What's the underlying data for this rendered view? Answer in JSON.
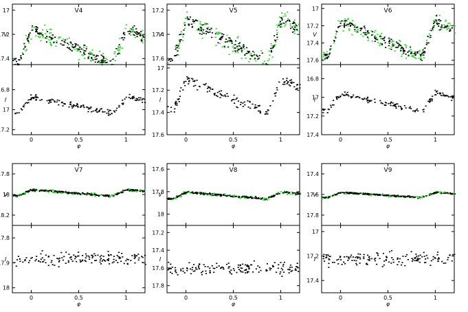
{
  "figure": {
    "background": "#ffffff",
    "axis_color": "#000000",
    "v_dot_colors": [
      "#000000",
      "#2ad22a"
    ],
    "i_dot_color": "#000000"
  },
  "chart_data": [
    {
      "type": "scatter",
      "title": "V4",
      "phase_ticks": [
        "0",
        "0.5",
        "1"
      ],
      "xlabel": "φ",
      "V": {
        "ylabel": "V",
        "ylim": [
          17.45,
          16.95
        ],
        "ticks": [
          "17",
          "17.2",
          "17.4"
        ],
        "tick_values": [
          17.0,
          17.2,
          17.4
        ],
        "mean": 17.3,
        "amplitude": 0.3,
        "green": true
      },
      "I": {
        "ylabel": "I",
        "ylim": [
          17.25,
          16.55
        ],
        "ticks": [
          "16.8",
          "17",
          "17.2"
        ],
        "tick_values": [
          16.8,
          17.0,
          17.2
        ],
        "mean": 16.95,
        "amplitude": 0.17
      }
    },
    {
      "type": "scatter",
      "title": "V5",
      "phase_ticks": [
        "0",
        "0.5",
        "1"
      ],
      "xlabel": "φ",
      "V": {
        "ylabel": "V",
        "ylim": [
          17.65,
          17.15
        ],
        "ticks": [
          "17.2",
          "17.4",
          "17.6"
        ],
        "tick_values": [
          17.2,
          17.4,
          17.6
        ],
        "mean": 17.45,
        "amplitude": 0.36,
        "green": true
      },
      "I": {
        "ylabel": "I",
        "ylim": [
          17.6,
          16.97
        ],
        "ticks": [
          "17",
          "17.2",
          "17.4",
          "17.6"
        ],
        "tick_values": [
          17.0,
          17.2,
          17.4,
          17.6
        ],
        "mean": 17.25,
        "amplitude": 0.3
      }
    },
    {
      "type": "scatter",
      "title": "V6",
      "phase_ticks": [
        "0",
        "0.5",
        "1"
      ],
      "xlabel": "φ",
      "V": {
        "ylabel": "V",
        "ylim": [
          17.65,
          16.95
        ],
        "ticks": [
          "17",
          "17.2",
          "17.4",
          "17.6"
        ],
        "tick_values": [
          17.0,
          17.2,
          17.4,
          17.6
        ],
        "mean": 17.35,
        "amplitude": 0.4,
        "green": true
      },
      "I": {
        "ylabel": "I",
        "ylim": [
          17.4,
          16.65
        ],
        "ticks": [
          "16.8",
          "17",
          "17.2",
          "17.4"
        ],
        "tick_values": [
          16.8,
          17.0,
          17.2,
          17.4
        ],
        "mean": 17.05,
        "amplitude": 0.2
      }
    },
    {
      "type": "scatter",
      "title": "V7",
      "phase_ticks": [
        "0",
        "0.5",
        "1"
      ],
      "xlabel": "φ",
      "V": {
        "ylabel": "V",
        "ylim": [
          18.3,
          17.7
        ],
        "ticks": [
          "17.8",
          "18",
          "18.2"
        ],
        "tick_values": [
          17.8,
          18.0,
          18.2
        ],
        "mean": 17.98,
        "amplitude": 0.06,
        "green": true
      },
      "I": {
        "ylabel": "I",
        "ylim": [
          18.02,
          17.75
        ],
        "ticks": [
          "17.8",
          "17.9",
          "18"
        ],
        "tick_values": [
          17.8,
          17.9,
          18.0
        ],
        "mean": 17.88,
        "amplitude": 0.0
      }
    },
    {
      "type": "scatter",
      "title": "V8",
      "phase_ticks": [
        "0",
        "0.5",
        "1"
      ],
      "xlabel": "φ",
      "V": {
        "ylabel": "V",
        "ylim": [
          18.1,
          17.55
        ],
        "ticks": [
          "17.6",
          "17.8",
          "18"
        ],
        "tick_values": [
          17.6,
          17.8,
          18.0
        ],
        "mean": 17.83,
        "amplitude": 0.06,
        "green": true
      },
      "I": {
        "ylabel": "I",
        "ylim": [
          17.88,
          17.12
        ],
        "ticks": [
          "17.2",
          "17.4",
          "17.6",
          "17.8"
        ],
        "tick_values": [
          17.2,
          17.4,
          17.6,
          17.8
        ],
        "mean": 17.6,
        "amplitude": 0.0
      }
    },
    {
      "type": "scatter",
      "title": "V9",
      "phase_ticks": [
        "0",
        "0.5",
        "1"
      ],
      "xlabel": "φ",
      "V": {
        "ylabel": "V",
        "ylim": [
          17.9,
          17.3
        ],
        "ticks": [
          "17.4",
          "17.6",
          "17.8"
        ],
        "tick_values": [
          17.4,
          17.6,
          17.8
        ],
        "mean": 17.6,
        "amplitude": 0.05,
        "green": true
      },
      "I": {
        "ylabel": "I",
        "ylim": [
          17.5,
          16.95
        ],
        "ticks": [
          "17",
          "17.2",
          "17.4"
        ],
        "tick_values": [
          17.0,
          17.2,
          17.4
        ],
        "mean": 17.22,
        "amplitude": 0.0
      }
    }
  ]
}
